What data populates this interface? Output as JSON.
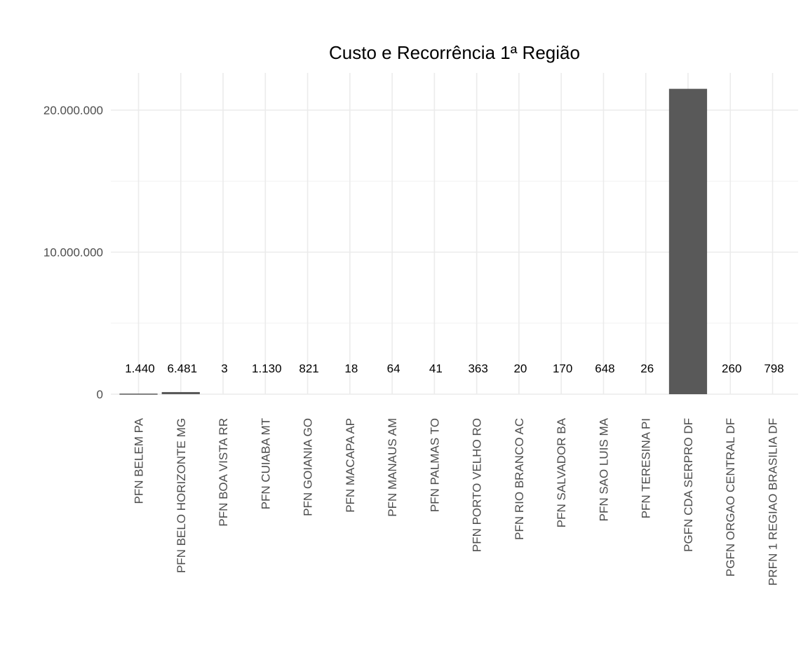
{
  "chart_data": {
    "type": "bar",
    "title": "Custo e Recorrência 1ª Região",
    "xlabel": "",
    "ylabel": "",
    "ylim": [
      0,
      22500000
    ],
    "yticks": [
      0,
      10000000,
      20000000
    ],
    "ytick_labels": [
      "0",
      "10.000.000",
      "20.000.000"
    ],
    "grid": true,
    "bar_color": "#595959",
    "categories": [
      "PFN BELEM PA",
      "PFN BELO HORIZONTE MG",
      "PFN BOA VISTA RR",
      "PFN CUIABA MT",
      "PFN GOIANIA GO",
      "PFN MACAPA AP",
      "PFN MANAUS AM",
      "PFN PALMAS TO",
      "PFN PORTO VELHO RO",
      "PFN RIO BRANCO AC",
      "PFN SALVADOR BA",
      "PFN SAO LUIS MA",
      "PFN TERESINA PI",
      "PGFN CDA SERPRO DF",
      "PGFN ORGAO CENTRAL DF",
      "PRFN 1 REGIAO BRASILIA DF"
    ],
    "values": [
      40000,
      150000,
      0,
      0,
      0,
      0,
      0,
      0,
      0,
      0,
      0,
      0,
      0,
      21500000,
      0,
      0
    ],
    "labels": [
      "1.440",
      "6.481",
      "3",
      "1.130",
      "821",
      "18",
      "64",
      "41",
      "363",
      "20",
      "170",
      "648",
      "26",
      "",
      "260",
      "798"
    ]
  }
}
